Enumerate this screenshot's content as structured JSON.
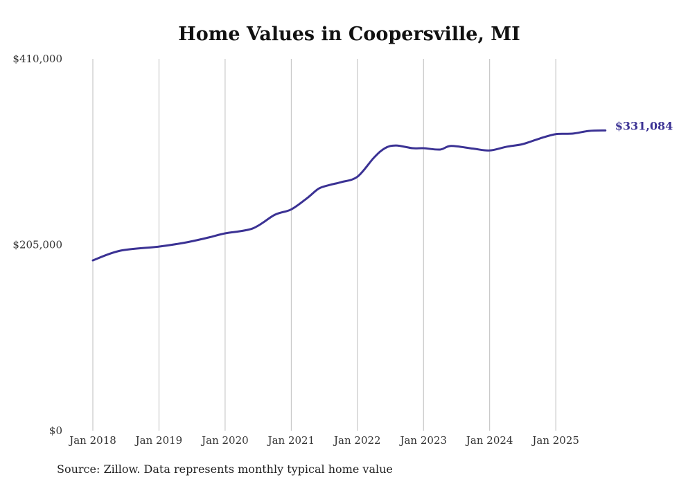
{
  "chart_data": {
    "type": "line",
    "title": "Home Values in Coopersville, MI",
    "xlabel": "",
    "ylabel": "",
    "ylim": [
      0,
      410000
    ],
    "y_ticks": [
      0,
      205000,
      410000
    ],
    "y_tick_labels": [
      "$0",
      "$205,000",
      "$410,000"
    ],
    "x_ticks": [
      "2018-01",
      "2019-01",
      "2020-01",
      "2021-01",
      "2022-01",
      "2023-01",
      "2024-01",
      "2025-01"
    ],
    "x_tick_labels": [
      "Jan 2018",
      "Jan 2019",
      "Jan 2020",
      "Jan 2021",
      "Jan 2022",
      "Jan 2023",
      "Jan 2024",
      "Jan 2025"
    ],
    "grid": "vertical",
    "legend": "none",
    "series": [
      {
        "name": "Typical home value",
        "color": "#3b3294",
        "x": [
          "2018-01",
          "2018-06",
          "2019-01",
          "2019-06",
          "2019-10",
          "2020-01",
          "2020-06",
          "2020-10",
          "2021-01",
          "2021-04",
          "2021-06",
          "2021-08",
          "2021-10",
          "2022-01",
          "2022-04",
          "2022-06",
          "2022-08",
          "2022-11",
          "2023-01",
          "2023-04",
          "2023-06",
          "2023-10",
          "2024-01",
          "2024-04",
          "2024-07",
          "2024-10",
          "2025-01",
          "2025-04",
          "2025-07",
          "2025-10"
        ],
        "values": [
          187800,
          198500,
          203000,
          207700,
          213000,
          217600,
          223000,
          238000,
          244000,
          257000,
          267000,
          271000,
          274000,
          280000,
          301000,
          311500,
          314500,
          311500,
          311500,
          310000,
          314000,
          311000,
          309000,
          313000,
          316000,
          322000,
          327000,
          327500,
          330500,
          331084
        ]
      }
    ],
    "annotations": [
      {
        "text": "$331,084"
      }
    ]
  },
  "footer": {
    "source": "Source: Zillow. Data represents monthly typical home value"
  }
}
